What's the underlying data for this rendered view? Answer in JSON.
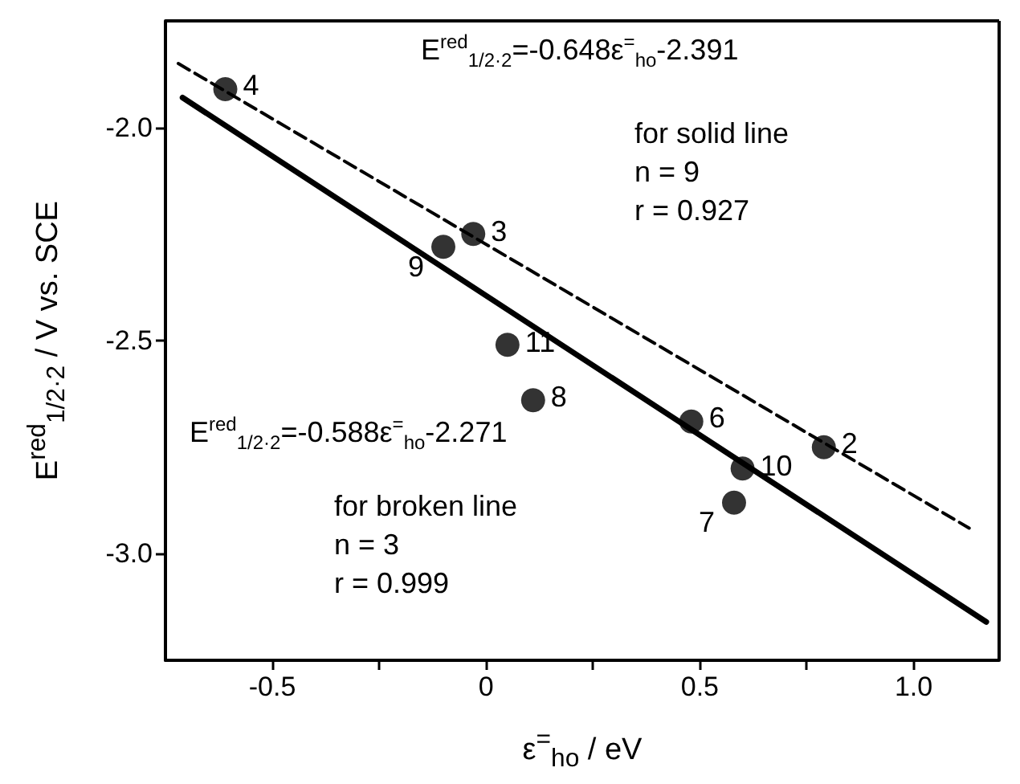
{
  "chart_data": {
    "type": "scatter",
    "xlabel": "ε$^{=}$$_{ho}$  /  eV",
    "ylabel": "E$^{red}$$_{1/2·2}$ / V vs. SCE",
    "annotations": [
      "E$^{red}$$_{1/2·2}$=-0.648ε$^{=}$$_{ho}$-2.391",
      "for solid line",
      "n = 9",
      "r = 0.927",
      "E$^{red}$$_{1/2·2}$=-0.588ε$^{=}$$_{ho}$-2.271",
      "for broken line",
      "n = 3",
      "r = 0.999",
      {
        "text": "4",
        "x": -0.61,
        "y": -1.91
      },
      {
        "text": "3",
        "x": -0.03,
        "y": -2.25
      },
      {
        "text": "9",
        "x": -0.1,
        "y": -2.28
      },
      {
        "text": "11",
        "x": 0.05,
        "y": -2.51
      },
      {
        "text": "8",
        "x": 0.11,
        "y": -2.64
      },
      {
        "text": "6",
        "x": 0.48,
        "y": -2.69
      },
      {
        "text": "10",
        "x": 0.6,
        "y": -2.8
      },
      {
        "text": "2",
        "x": 0.79,
        "y": -2.75
      },
      {
        "text": "7",
        "x": 0.58,
        "y": -2.88
      }
    ],
    "xlim": [
      -0.75,
      1.2
    ],
    "xticks": [
      {
        "value": -0.5,
        "label": "-0.5"
      },
      {
        "value": -0.25,
        "label": null
      },
      {
        "value": 0,
        "label": "0"
      },
      {
        "value": 0.25,
        "label": null
      },
      {
        "value": 0.5,
        "label": "0.5"
      },
      {
        "value": 0.75,
        "label": null
      },
      {
        "value": 1,
        "label": "1.0"
      }
    ],
    "ylim": [
      -3.25,
      -1.75
    ],
    "yticks": [
      {
        "value": -3,
        "label": "-3.0"
      },
      {
        "value": -2.5,
        "label": "-2.5"
      },
      {
        "value": -2,
        "label": "-2.0"
      }
    ],
    "marker": "circle",
    "series": [
      {
        "color": "#000000",
        "x": [
          -0.61,
          -0.03,
          -0.1,
          0.05,
          0.11,
          0.48,
          0.6,
          0.79,
          0.58
        ],
        "values": [
          -1.91,
          -2.25,
          -2.28,
          -2.51,
          -2.64,
          -2.69,
          -2.8,
          -2.75,
          -2.88
        ]
      },
      {
        "type": "line",
        "color": "#000000",
        "line_style": "solid",
        "marker": "none",
        "x": [
          -0.71,
          1.17
        ],
        "values": [
          -1.93,
          -3.16
        ]
      },
      {
        "type": "line",
        "color": "#000000",
        "line_style": "dashed",
        "marker": "none",
        "x": [
          -0.72,
          1.13
        ],
        "values": [
          -1.85,
          -2.94
        ]
      }
    ]
  }
}
